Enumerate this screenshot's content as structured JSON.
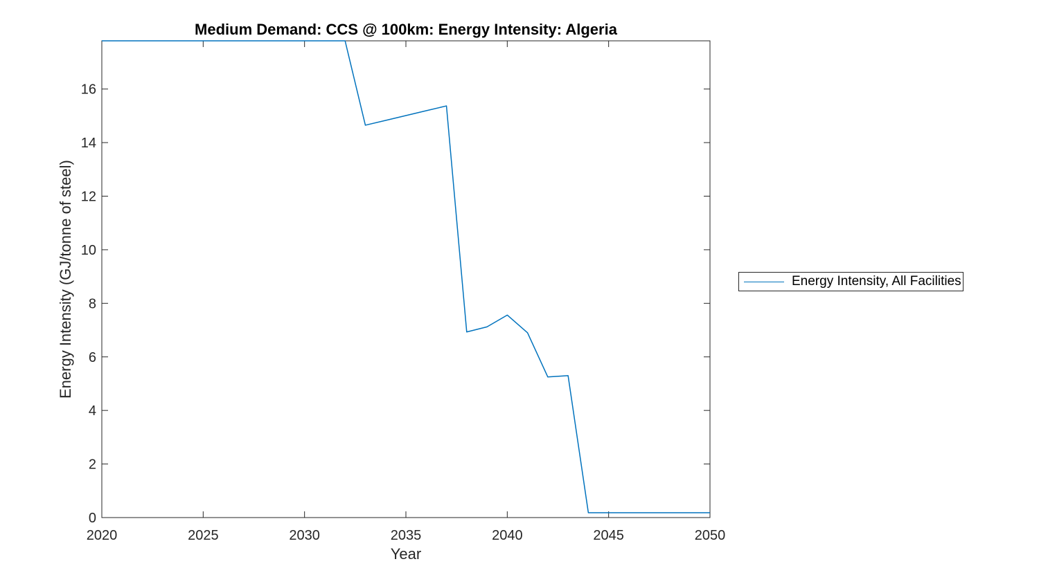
{
  "figure": {
    "background": "#ffffff"
  },
  "style": {
    "axis_color": "#262626",
    "tick_label_color": "#262626",
    "title_color": "#000000",
    "line_color": "#0072BD",
    "tick_label_font_px": 20
  },
  "chart_data": {
    "type": "line",
    "title": "Medium Demand: CCS @ 100km: Energy Intensity: Algeria",
    "xlabel": "Year",
    "ylabel": "Energy Intensity (GJ/tonne of steel)",
    "xlim": [
      2020,
      2050
    ],
    "ylim": [
      0,
      17.8
    ],
    "x_ticks": [
      2020,
      2025,
      2030,
      2035,
      2040,
      2045,
      2050
    ],
    "y_ticks": [
      0,
      2,
      4,
      6,
      8,
      10,
      12,
      14,
      16
    ],
    "grid": false,
    "box": true,
    "legend": {
      "position": "outside-right",
      "entries": [
        {
          "label": "Energy Intensity, All Facilities",
          "color": "#0072BD"
        }
      ]
    },
    "series": [
      {
        "name": "Energy Intensity, All Facilities",
        "color": "#0072BD",
        "x": [
          2020,
          2021,
          2022,
          2023,
          2024,
          2025,
          2026,
          2027,
          2028,
          2029,
          2030,
          2031,
          2032,
          2033,
          2034,
          2035,
          2036,
          2037,
          2038,
          2039,
          2040,
          2041,
          2042,
          2043,
          2044,
          2045,
          2046,
          2047,
          2048,
          2049,
          2050
        ],
        "y": [
          17.8,
          17.8,
          17.8,
          17.8,
          17.8,
          17.8,
          17.8,
          17.8,
          17.8,
          17.8,
          17.8,
          17.8,
          17.8,
          14.65,
          14.83,
          15.01,
          15.19,
          15.37,
          6.93,
          7.12,
          7.56,
          6.9,
          5.25,
          5.3,
          0.18,
          0.18,
          0.18,
          0.18,
          0.18,
          0.18,
          0.18
        ]
      }
    ]
  }
}
